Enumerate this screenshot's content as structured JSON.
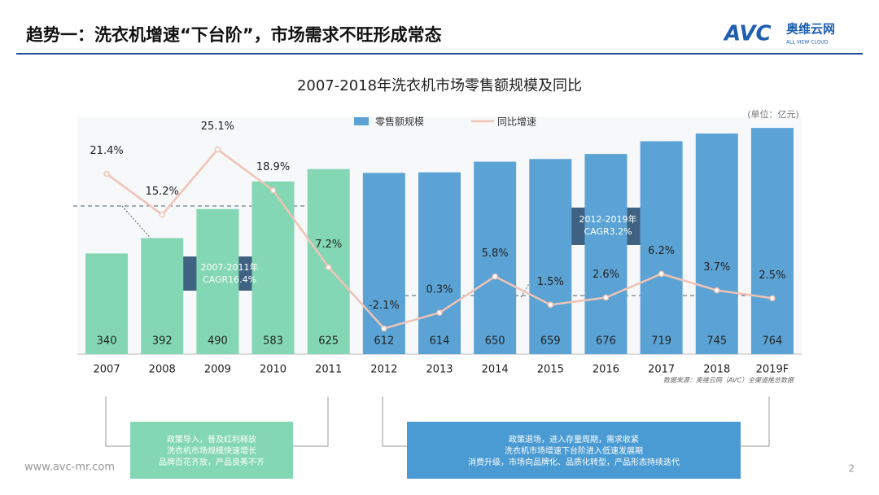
{
  "header": {
    "title": "趋势一：洗衣机增速“下台阶”，市场需求不旺形成常态",
    "logo": {
      "mark": "AVC",
      "name": "奥维云网",
      "tagline": "ALL VIEW CLOUD"
    }
  },
  "chart_data": {
    "type": "combo",
    "title": "2007-2018年洗衣机市场零售额规模及同比",
    "unit": "(单位：亿元)",
    "categories": [
      "2007",
      "2008",
      "2009",
      "2010",
      "2011",
      "2012",
      "2013",
      "2014",
      "2015",
      "2016",
      "2017",
      "2018",
      "2019F"
    ],
    "series": [
      {
        "name": "零售额规模",
        "kind": "bar",
        "color": "#5ba3d5",
        "colors": [
          "#84d7b4",
          "#84d7b4",
          "#84d7b4",
          "#84d7b4",
          "#84d7b4",
          "#5ba3d5",
          "#5ba3d5",
          "#5ba3d5",
          "#5ba3d5",
          "#5ba3d5",
          "#5ba3d5",
          "#5ba3d5",
          "#5ba3d5"
        ],
        "values": [
          340,
          392,
          490,
          583,
          625,
          612,
          614,
          650,
          659,
          676,
          719,
          745,
          764
        ]
      },
      {
        "name": "同比增速",
        "kind": "line",
        "axis": "y2",
        "color": "#f0c3b5",
        "values": [
          21.4,
          15.2,
          25.1,
          18.9,
          7.2,
          -2.1,
          0.3,
          5.8,
          1.5,
          2.6,
          6.2,
          3.7,
          2.5
        ],
        "value_labels": [
          "21.4%",
          "15.2%",
          "25.1%",
          "18.9%",
          "7.2%",
          "-2.1%",
          "0.3%",
          "5.8%",
          "1.5%",
          "2.6%",
          "6.2%",
          "3.7%",
          "2.5%"
        ]
      }
    ],
    "ylim": [
      0,
      800
    ],
    "y2lim": [
      -6,
      30
    ],
    "annotations": [
      {
        "lines": [
          "2007-2011年",
          "CAGR16.4%"
        ]
      },
      {
        "lines": [
          "2012-2019年",
          "CAGR3.2%"
        ]
      }
    ],
    "source": "数据来源：奥维云网（AVC）全渠道推总数据"
  },
  "notes": [
    {
      "lines": [
        "政策导入，普及红利释放",
        "洗衣机市场规模快速增长",
        "品牌百花齐放，产品良莠不齐"
      ]
    },
    {
      "lines": [
        "政策退场，进入存量周期，需求收紧",
        "洗衣机市场增速下台阶进入低速发展期",
        "消费升级，市场向品牌化、品质化转型，产品形态持续迭代"
      ]
    }
  ],
  "footer": {
    "url": "www.avc-mr.com",
    "page": "2"
  }
}
